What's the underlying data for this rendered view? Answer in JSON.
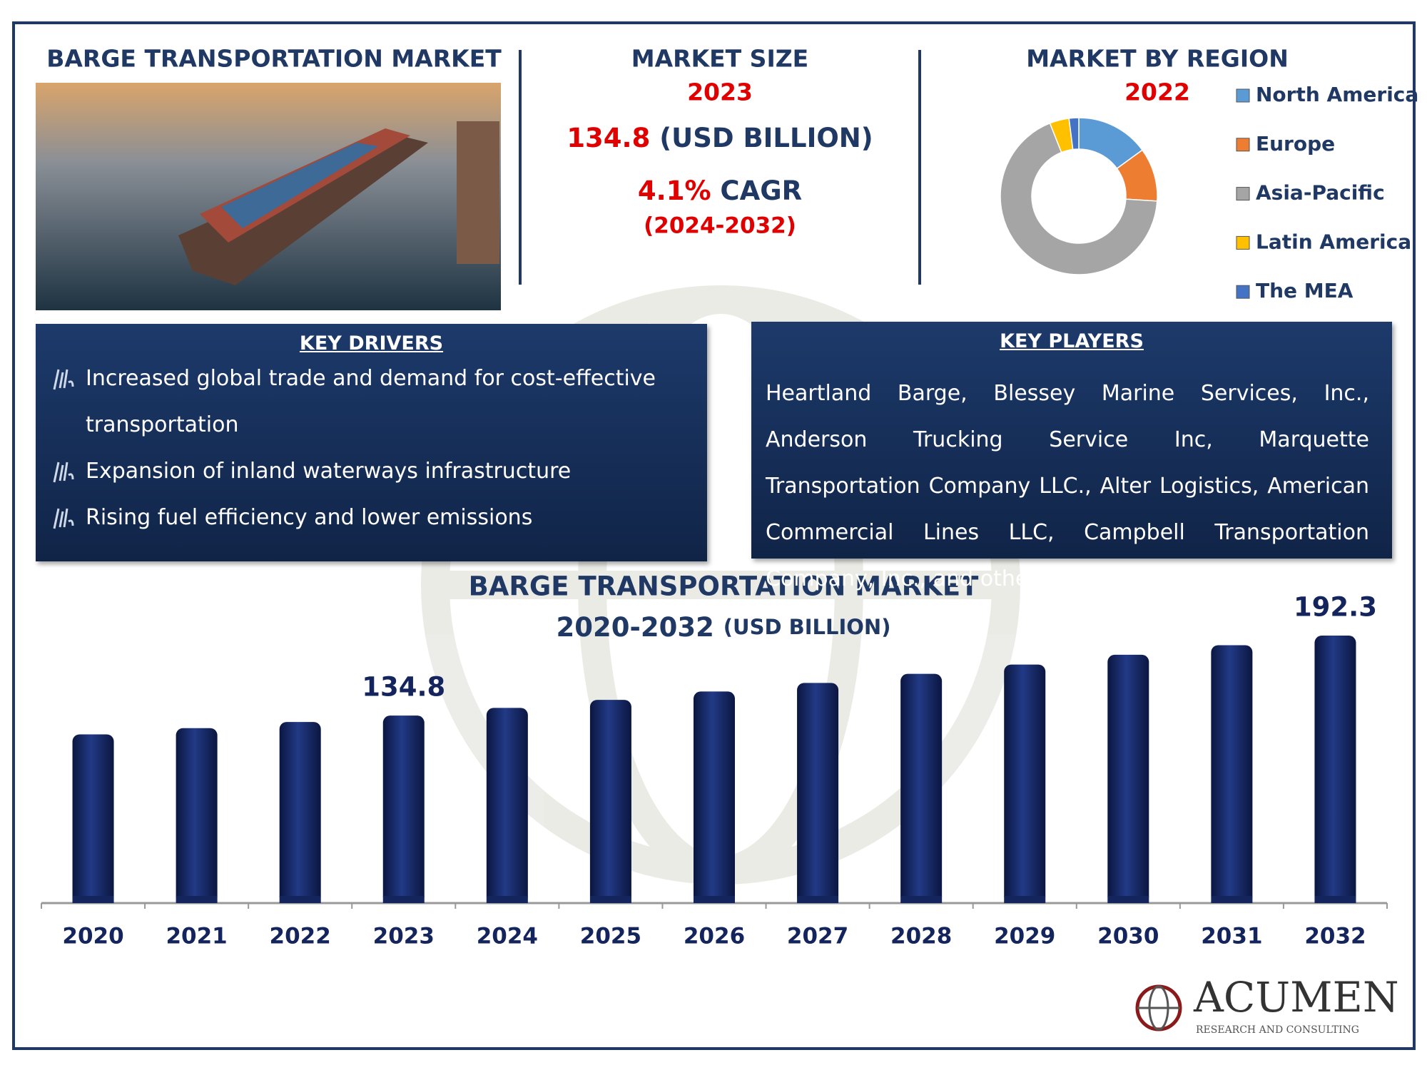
{
  "header": {
    "title": "BARGE TRANSPORTATION MARKET"
  },
  "market_size": {
    "title": "MARKET SIZE",
    "year": "2023",
    "value": "134.8",
    "unit": "(USD BILLION)",
    "cagr": "4.1%",
    "cagr_label": "CAGR",
    "period": "(2024-2032)"
  },
  "key_drivers": {
    "title": "KEY DRIVERS",
    "items": [
      "Increased global trade and demand for cost-effective transportation",
      "Expansion of inland waterways infrastructure",
      "Rising fuel efficiency and lower emissions"
    ]
  },
  "key_players": {
    "title": "KEY PLAYERS",
    "text": "Heartland Barge, Blessey Marine Services, Inc., Anderson Trucking Service Inc, Marquette Transportation Company LLC., Alter Logistics, American Commercial Lines LLC, Campbell Transportation Company, Inc., and others."
  },
  "logo": {
    "name": "ACUMEN",
    "tagline": "RESEARCH AND CONSULTING"
  },
  "chart_data": [
    {
      "type": "donut",
      "title": "MARKET BY REGION",
      "subtitle": "2022",
      "categories": [
        "North America",
        "Europe",
        "Asia-Pacific",
        "Latin America",
        "The MEA"
      ],
      "values": [
        15,
        11,
        68,
        4,
        2
      ],
      "colors": [
        "#5b9bd5",
        "#ed7d31",
        "#a5a5a5",
        "#ffc000",
        "#4472c4"
      ]
    },
    {
      "type": "bar",
      "title": "BARGE TRANSPORTATION MARKET",
      "subtitle": "2020-2032",
      "y_label": "(USD BILLION)",
      "categories": [
        "2020",
        "2021",
        "2022",
        "2023",
        "2024",
        "2025",
        "2026",
        "2027",
        "2028",
        "2029",
        "2030",
        "2031",
        "2032"
      ],
      "values": [
        121.3,
        125.8,
        130.2,
        134.8,
        140.3,
        146.1,
        152.1,
        158.3,
        164.8,
        171.5,
        178.5,
        185.4,
        192.3
      ],
      "value_labels": [
        null,
        null,
        null,
        "134.8",
        null,
        null,
        null,
        null,
        null,
        null,
        null,
        null,
        "192.3"
      ],
      "color": "#14245c",
      "ylim": [
        0,
        200
      ]
    }
  ]
}
